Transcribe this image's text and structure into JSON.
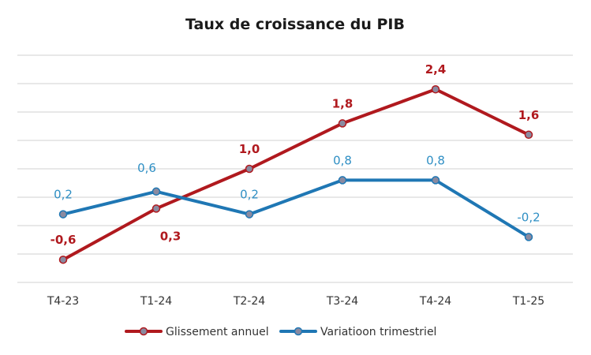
{
  "chart_data": {
    "type": "line",
    "title": "Taux de croissance du PIB",
    "categories": [
      "T4-23",
      "T1-24",
      "T2-24",
      "T3-24",
      "T4-24",
      "T1-25"
    ],
    "series": [
      {
        "name": "Glissement annuel",
        "values": [
          -0.6,
          0.3,
          1.0,
          1.8,
          2.4,
          1.6
        ],
        "labels": [
          "-0,6",
          "0,3",
          "1,0",
          "1,8",
          "2,4",
          "1,6"
        ],
        "color": "#b0191e",
        "label_color": "#b0191e"
      },
      {
        "name": "Variatioon trimestriel",
        "values": [
          0.2,
          0.6,
          0.2,
          0.8,
          0.8,
          -0.2
        ],
        "labels": [
          "0,2",
          "0,6",
          "0,2",
          "0,8",
          "0,8",
          "-0,2"
        ],
        "color": "#1f77b4",
        "label_color": "#2f8fc4"
      }
    ],
    "ylim": [
      -1,
      3
    ],
    "grid": true,
    "legend_position": "bottom",
    "marker_color": "#8a8aa0"
  }
}
